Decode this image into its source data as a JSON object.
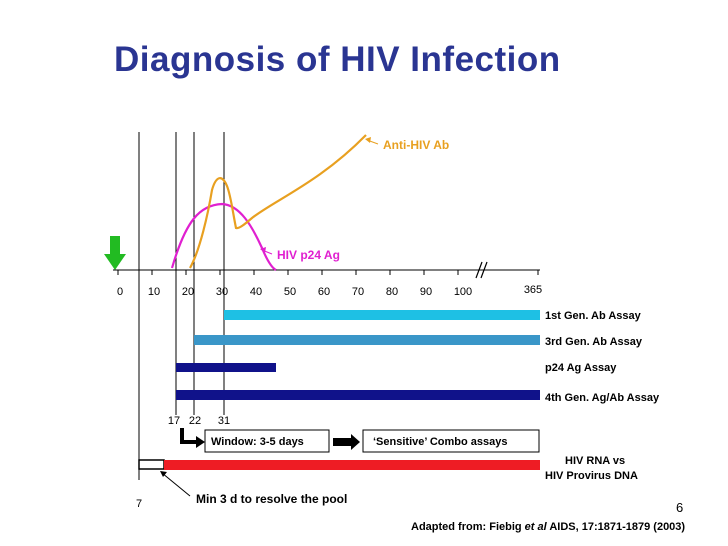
{
  "title": "Diagnosis of HIV Infection",
  "curves": {
    "antibody_label": "Anti-HIV Ab",
    "antigen_label": "HIV p24 Ag"
  },
  "axis": {
    "ticks": [
      "0",
      "10",
      "20",
      "30",
      "40",
      "50",
      "60",
      "70",
      "80",
      "90",
      "100",
      "365"
    ]
  },
  "assays": [
    {
      "label": "1st Gen. Ab Assay",
      "color": "#1ec0e4"
    },
    {
      "label": "3rd Gen. Ab Assay",
      "color": "#3a96c8"
    },
    {
      "label": "p24 Ag Assay",
      "color": "#10128a"
    },
    {
      "label": "4th Gen. Ag/Ab Assay",
      "color": "#10128a"
    }
  ],
  "day_markers": {
    "d17": "17",
    "d22": "22",
    "d31": "31",
    "d7": "7"
  },
  "window_box": "Window: 3-5 days",
  "combo_box": "‘Sensitive’ Combo assays",
  "rna_label_line1": "HIV RNA vs",
  "rna_label_line2": "HIV Provirus DNA",
  "pool_note": "Min 3 d to resolve the pool",
  "page_number": "6",
  "citation": {
    "prefix": "Adapted from: Fiebig ",
    "et_al": "et al",
    "suffix": " AIDS, 17:1871-1879 (2003)"
  },
  "colors": {
    "title": "#2a3592",
    "antibody_curve": "#e8a020",
    "antigen_curve": "#e020d0",
    "rna_bar": "#ee1c24",
    "arrow_green": "#22bb22"
  }
}
